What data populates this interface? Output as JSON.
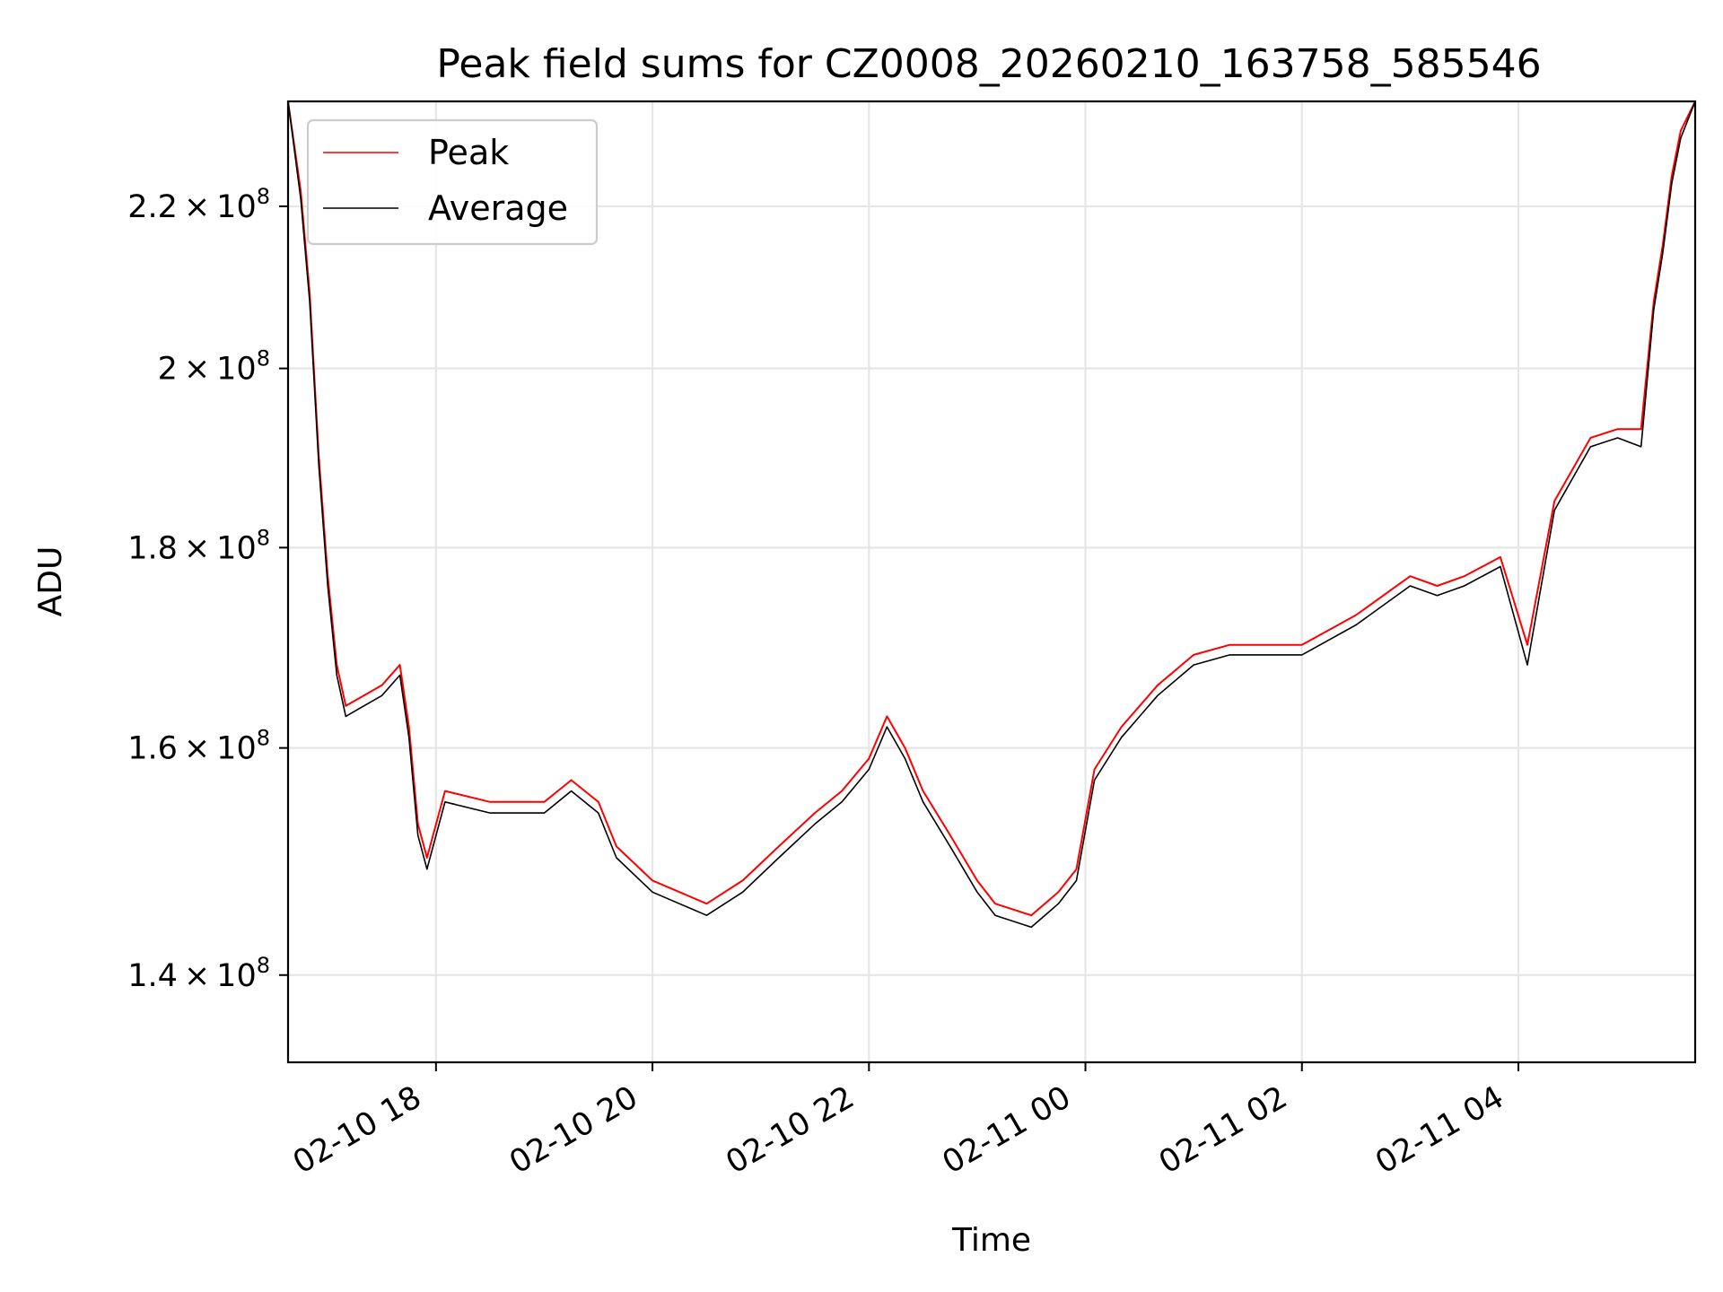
{
  "chart_data": {
    "type": "line",
    "title": "Peak field sums for CZ0008_20260210_163758_585546",
    "xlabel": "Time",
    "ylabel": "ADU",
    "scale": {
      "x": "time",
      "y": "log"
    },
    "grid": true,
    "legend_position": "upper-left",
    "xlim": [
      "2026-02-10T16:38",
      "2026-02-11T05:38"
    ],
    "ylim": [
      133000000,
      234000000
    ],
    "x_ticks": [
      {
        "value": "2026-02-10T18:00",
        "label": "02-10 18"
      },
      {
        "value": "2026-02-10T20:00",
        "label": "02-10 20"
      },
      {
        "value": "2026-02-10T22:00",
        "label": "02-10 22"
      },
      {
        "value": "2026-02-11T00:00",
        "label": "02-11 00"
      },
      {
        "value": "2026-02-11T02:00",
        "label": "02-11 02"
      },
      {
        "value": "2026-02-11T04:00",
        "label": "02-11 04"
      }
    ],
    "y_ticks": [
      {
        "value": 140000000,
        "mantissa": "1.4",
        "base": "10",
        "exponent": "8"
      },
      {
        "value": 160000000,
        "mantissa": "1.6",
        "base": "10",
        "exponent": "8"
      },
      {
        "value": 180000000,
        "mantissa": "1.8",
        "base": "10",
        "exponent": "8"
      },
      {
        "value": 200000000,
        "mantissa": "2",
        "base": "10",
        "exponent": "8"
      },
      {
        "value": 220000000,
        "mantissa": "2.2",
        "base": "10",
        "exponent": "8"
      }
    ],
    "series": [
      {
        "name": "Peak",
        "color": "#ff0000",
        "points": [
          [
            "2026-02-10T16:38",
            234000000
          ],
          [
            "2026-02-10T16:45",
            222000000
          ],
          [
            "2026-02-10T16:50",
            209000000
          ],
          [
            "2026-02-10T16:55",
            190000000
          ],
          [
            "2026-02-10T17:00",
            177000000
          ],
          [
            "2026-02-10T17:05",
            168000000
          ],
          [
            "2026-02-10T17:10",
            164000000
          ],
          [
            "2026-02-10T17:20",
            165000000
          ],
          [
            "2026-02-10T17:30",
            166000000
          ],
          [
            "2026-02-10T17:40",
            168000000
          ],
          [
            "2026-02-10T17:45",
            162000000
          ],
          [
            "2026-02-10T17:50",
            153000000
          ],
          [
            "2026-02-10T17:55",
            150000000
          ],
          [
            "2026-02-10T18:05",
            156000000
          ],
          [
            "2026-02-10T18:30",
            155000000
          ],
          [
            "2026-02-10T19:00",
            155000000
          ],
          [
            "2026-02-10T19:15",
            157000000
          ],
          [
            "2026-02-10T19:30",
            155000000
          ],
          [
            "2026-02-10T19:40",
            151000000
          ],
          [
            "2026-02-10T20:00",
            148000000
          ],
          [
            "2026-02-10T20:30",
            146000000
          ],
          [
            "2026-02-10T20:50",
            148000000
          ],
          [
            "2026-02-10T21:10",
            151000000
          ],
          [
            "2026-02-10T21:30",
            154000000
          ],
          [
            "2026-02-10T21:45",
            156000000
          ],
          [
            "2026-02-10T22:00",
            159000000
          ],
          [
            "2026-02-10T22:10",
            163000000
          ],
          [
            "2026-02-10T22:20",
            160000000
          ],
          [
            "2026-02-10T22:30",
            156000000
          ],
          [
            "2026-02-10T22:45",
            152000000
          ],
          [
            "2026-02-10T23:00",
            148000000
          ],
          [
            "2026-02-10T23:10",
            146000000
          ],
          [
            "2026-02-10T23:30",
            145000000
          ],
          [
            "2026-02-10T23:45",
            147000000
          ],
          [
            "2026-02-10T23:55",
            149000000
          ],
          [
            "2026-02-11T00:05",
            158000000
          ],
          [
            "2026-02-11T00:20",
            162000000
          ],
          [
            "2026-02-11T00:40",
            166000000
          ],
          [
            "2026-02-11T01:00",
            169000000
          ],
          [
            "2026-02-11T01:20",
            170000000
          ],
          [
            "2026-02-11T01:40",
            170000000
          ],
          [
            "2026-02-11T02:00",
            170000000
          ],
          [
            "2026-02-11T02:30",
            173000000
          ],
          [
            "2026-02-11T03:00",
            177000000
          ],
          [
            "2026-02-11T03:15",
            176000000
          ],
          [
            "2026-02-11T03:30",
            177000000
          ],
          [
            "2026-02-11T03:50",
            179000000
          ],
          [
            "2026-02-11T04:05",
            170000000
          ],
          [
            "2026-02-11T04:20",
            185000000
          ],
          [
            "2026-02-11T04:40",
            192000000
          ],
          [
            "2026-02-11T04:55",
            193000000
          ],
          [
            "2026-02-11T05:08",
            193000000
          ],
          [
            "2026-02-11T05:15",
            208000000
          ],
          [
            "2026-02-11T05:20",
            215000000
          ],
          [
            "2026-02-11T05:25",
            224000000
          ],
          [
            "2026-02-11T05:30",
            230000000
          ],
          [
            "2026-02-11T05:38",
            234000000
          ]
        ]
      },
      {
        "name": "Average",
        "color": "#000000",
        "points": [
          [
            "2026-02-10T16:38",
            234000000
          ],
          [
            "2026-02-10T16:45",
            221000000
          ],
          [
            "2026-02-10T16:50",
            208000000
          ],
          [
            "2026-02-10T16:55",
            189000000
          ],
          [
            "2026-02-10T17:00",
            176000000
          ],
          [
            "2026-02-10T17:05",
            167000000
          ],
          [
            "2026-02-10T17:10",
            163000000
          ],
          [
            "2026-02-10T17:20",
            164000000
          ],
          [
            "2026-02-10T17:30",
            165000000
          ],
          [
            "2026-02-10T17:40",
            167000000
          ],
          [
            "2026-02-10T17:45",
            161000000
          ],
          [
            "2026-02-10T17:50",
            152000000
          ],
          [
            "2026-02-10T17:55",
            149000000
          ],
          [
            "2026-02-10T18:05",
            155000000
          ],
          [
            "2026-02-10T18:30",
            154000000
          ],
          [
            "2026-02-10T19:00",
            154000000
          ],
          [
            "2026-02-10T19:15",
            156000000
          ],
          [
            "2026-02-10T19:30",
            154000000
          ],
          [
            "2026-02-10T19:40",
            150000000
          ],
          [
            "2026-02-10T20:00",
            147000000
          ],
          [
            "2026-02-10T20:30",
            145000000
          ],
          [
            "2026-02-10T20:50",
            147000000
          ],
          [
            "2026-02-10T21:10",
            150000000
          ],
          [
            "2026-02-10T21:30",
            153000000
          ],
          [
            "2026-02-10T21:45",
            155000000
          ],
          [
            "2026-02-10T22:00",
            158000000
          ],
          [
            "2026-02-10T22:10",
            162000000
          ],
          [
            "2026-02-10T22:20",
            159000000
          ],
          [
            "2026-02-10T22:30",
            155000000
          ],
          [
            "2026-02-10T22:45",
            151000000
          ],
          [
            "2026-02-10T23:00",
            147000000
          ],
          [
            "2026-02-10T23:10",
            145000000
          ],
          [
            "2026-02-10T23:30",
            144000000
          ],
          [
            "2026-02-10T23:45",
            146000000
          ],
          [
            "2026-02-10T23:55",
            148000000
          ],
          [
            "2026-02-11T00:05",
            157000000
          ],
          [
            "2026-02-11T00:20",
            161000000
          ],
          [
            "2026-02-11T00:40",
            165000000
          ],
          [
            "2026-02-11T01:00",
            168000000
          ],
          [
            "2026-02-11T01:20",
            169000000
          ],
          [
            "2026-02-11T01:40",
            169000000
          ],
          [
            "2026-02-11T02:00",
            169000000
          ],
          [
            "2026-02-11T02:30",
            172000000
          ],
          [
            "2026-02-11T03:00",
            176000000
          ],
          [
            "2026-02-11T03:15",
            175000000
          ],
          [
            "2026-02-11T03:30",
            176000000
          ],
          [
            "2026-02-11T03:50",
            178000000
          ],
          [
            "2026-02-11T04:05",
            168000000
          ],
          [
            "2026-02-11T04:20",
            184000000
          ],
          [
            "2026-02-11T04:40",
            191000000
          ],
          [
            "2026-02-11T04:55",
            192000000
          ],
          [
            "2026-02-11T05:08",
            191000000
          ],
          [
            "2026-02-11T05:15",
            207000000
          ],
          [
            "2026-02-11T05:20",
            214000000
          ],
          [
            "2026-02-11T05:25",
            223000000
          ],
          [
            "2026-02-11T05:30",
            229000000
          ],
          [
            "2026-02-11T05:38",
            234000000
          ]
        ]
      }
    ]
  }
}
